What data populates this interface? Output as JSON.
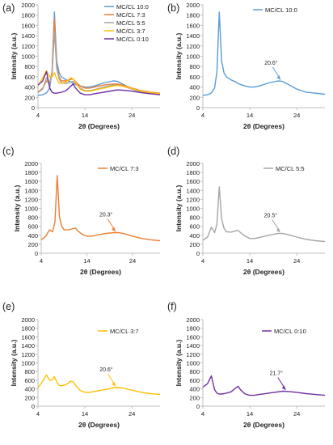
{
  "figure": {
    "colors": {
      "MC/CL 10:0": "#5b9bd5",
      "MC/CL 7:3": "#ed7d31",
      "MC/CL 5:5": "#a5a5a5",
      "MC/CL 3:7": "#ffc000",
      "MC/CL 0:10": "#7030a0",
      "axis": "#bfbfbf",
      "text": "#222222"
    }
  },
  "chart_data": [
    {
      "panel_label": "(a)",
      "type": "line",
      "xlabel": "2θ (Degrees)",
      "ylabel": "Intensity (a.u.)",
      "xlim": [
        4,
        30
      ],
      "ylim": [
        0,
        2000
      ],
      "xticks": [
        4,
        14,
        24
      ],
      "yticks": [
        0,
        200,
        400,
        600,
        800,
        1000,
        1200,
        1400,
        1600,
        1800,
        2000
      ],
      "grid": false,
      "legend": "top-right",
      "series": [
        {
          "name": "MC/CL 10:0",
          "x": [
            4,
            5,
            5.8,
            6.5,
            7,
            7.5,
            8,
            8.5,
            9,
            10,
            11,
            11.5,
            12,
            13,
            14,
            15,
            16,
            18,
            20,
            21,
            22,
            24,
            26,
            28,
            30
          ],
          "y": [
            240,
            250,
            285,
            380,
            700,
            1860,
            900,
            680,
            600,
            540,
            500,
            470,
            450,
            420,
            400,
            400,
            420,
            480,
            520,
            510,
            460,
            360,
            300,
            280,
            260
          ]
        },
        {
          "name": "MC/CL 7:3",
          "x": [
            4,
            5,
            5.8,
            6.5,
            7,
            7.5,
            8,
            8.5,
            9,
            10,
            11,
            11.5,
            12,
            13,
            14,
            15,
            16,
            18,
            20,
            21,
            22,
            24,
            26,
            28,
            30
          ],
          "y": [
            300,
            380,
            520,
            480,
            700,
            1730,
            800,
            600,
            520,
            520,
            550,
            560,
            500,
            420,
            380,
            380,
            400,
            440,
            460,
            460,
            440,
            380,
            330,
            300,
            280
          ]
        },
        {
          "name": "MC/CL 5:5",
          "x": [
            4,
            5,
            5.8,
            6.5,
            7,
            7.5,
            8,
            8.5,
            9,
            10,
            11,
            11.5,
            12,
            13,
            14,
            15,
            16,
            18,
            20,
            21,
            22,
            24,
            26,
            28,
            30
          ],
          "y": [
            290,
            360,
            580,
            460,
            650,
            1480,
            760,
            560,
            480,
            470,
            500,
            510,
            460,
            380,
            330,
            330,
            350,
            400,
            440,
            440,
            420,
            360,
            310,
            280,
            260
          ]
        },
        {
          "name": "MC/CL 3:7",
          "x": [
            4,
            5,
            5.8,
            6.5,
            7,
            7.5,
            8,
            8.5,
            9,
            10,
            11,
            11.5,
            12,
            13,
            14,
            15,
            16,
            18,
            20,
            21,
            22,
            24,
            26,
            28,
            30
          ],
          "y": [
            420,
            580,
            720,
            600,
            600,
            680,
            560,
            480,
            470,
            500,
            580,
            560,
            480,
            360,
            320,
            320,
            340,
            380,
            420,
            430,
            420,
            370,
            320,
            290,
            270
          ]
        },
        {
          "name": "MC/CL 0:10",
          "x": [
            4,
            5,
            5.8,
            6.5,
            7,
            7.5,
            8,
            8.5,
            9,
            10,
            11,
            11.5,
            12,
            13,
            14,
            15,
            16,
            18,
            20,
            21,
            22,
            24,
            26,
            28,
            30
          ],
          "y": [
            440,
            520,
            700,
            380,
            300,
            280,
            280,
            290,
            300,
            330,
            420,
            460,
            380,
            280,
            250,
            250,
            270,
            300,
            330,
            345,
            340,
            320,
            290,
            270,
            250
          ]
        }
      ]
    },
    {
      "panel_label": "(b)",
      "type": "line",
      "xlabel": "2θ (Degrees)",
      "ylabel": "Intensity (a.u.)",
      "xlim": [
        4,
        30
      ],
      "ylim": [
        0,
        2000
      ],
      "xticks": [
        4,
        14,
        24
      ],
      "yticks": [
        0,
        200,
        400,
        600,
        800,
        1000,
        1200,
        1400,
        1600,
        1800,
        2000
      ],
      "legend": "top-right",
      "annotation": {
        "text": "20.6°",
        "x": 20.6,
        "y": 520
      },
      "series": [
        {
          "name": "MC/CL 10:0",
          "x": [
            4,
            5,
            5.8,
            6.5,
            7,
            7.5,
            8,
            8.5,
            9,
            10,
            11,
            11.5,
            12,
            13,
            14,
            15,
            16,
            18,
            20,
            21,
            22,
            24,
            26,
            28,
            30
          ],
          "y": [
            240,
            250,
            285,
            380,
            700,
            1860,
            900,
            680,
            600,
            540,
            500,
            470,
            450,
            420,
            400,
            400,
            420,
            480,
            520,
            510,
            460,
            360,
            300,
            280,
            260
          ]
        }
      ]
    },
    {
      "panel_label": "(c)",
      "type": "line",
      "xlabel": "2θ (Degrees)",
      "ylabel": "Intensity (a.u.)",
      "xlim": [
        4,
        30
      ],
      "ylim": [
        0,
        2000
      ],
      "xticks": [
        4,
        14,
        24
      ],
      "yticks": [
        0,
        200,
        400,
        600,
        800,
        1000,
        1200,
        1400,
        1600,
        1800,
        2000
      ],
      "legend": "top-right",
      "annotation": {
        "text": "20.3°",
        "x": 20.3,
        "y": 460
      },
      "series": [
        {
          "name": "MC/CL 7:3",
          "x": [
            4,
            5,
            5.8,
            6.5,
            7,
            7.5,
            8,
            8.5,
            9,
            10,
            11,
            11.5,
            12,
            13,
            14,
            15,
            16,
            18,
            20,
            21,
            22,
            24,
            26,
            28,
            30
          ],
          "y": [
            300,
            380,
            520,
            480,
            700,
            1730,
            800,
            600,
            520,
            520,
            550,
            560,
            500,
            420,
            380,
            380,
            400,
            440,
            460,
            460,
            440,
            380,
            330,
            300,
            280
          ]
        }
      ]
    },
    {
      "panel_label": "(d)",
      "type": "line",
      "xlabel": "2θ (Degrees)",
      "ylabel": "Intensity (a.u.)",
      "xlim": [
        4,
        30
      ],
      "ylim": [
        0,
        2000
      ],
      "xticks": [
        4,
        14,
        24
      ],
      "yticks": [
        0,
        200,
        400,
        600,
        800,
        1000,
        1200,
        1400,
        1600,
        1800,
        2000
      ],
      "legend": "top-right",
      "annotation": {
        "text": "20.5°",
        "x": 20.5,
        "y": 440
      },
      "series": [
        {
          "name": "MC/CL 5:5",
          "x": [
            4,
            5,
            5.8,
            6.5,
            7,
            7.5,
            8,
            8.5,
            9,
            10,
            11,
            11.5,
            12,
            13,
            14,
            15,
            16,
            18,
            20,
            21,
            22,
            24,
            26,
            28,
            30
          ],
          "y": [
            290,
            360,
            580,
            460,
            650,
            1480,
            760,
            560,
            480,
            470,
            500,
            510,
            460,
            380,
            330,
            330,
            350,
            400,
            440,
            440,
            420,
            360,
            310,
            280,
            260
          ]
        }
      ]
    },
    {
      "panel_label": "(e)",
      "type": "line",
      "xlabel": "2θ (Degrees)",
      "ylabel": "Intensity (a.u.)",
      "xlim": [
        4,
        30
      ],
      "ylim": [
        0,
        2000
      ],
      "xticks": [
        4,
        14,
        24
      ],
      "yticks": [
        0,
        200,
        400,
        600,
        800,
        1000,
        1200,
        1400,
        1600,
        1800,
        2000
      ],
      "legend": "top-right",
      "annotation": {
        "text": "20.6°",
        "x": 20.6,
        "y": 430
      },
      "series": [
        {
          "name": "MC/CL 3:7",
          "x": [
            4,
            5,
            5.8,
            6.5,
            7,
            7.5,
            8,
            8.5,
            9,
            10,
            11,
            11.5,
            12,
            13,
            14,
            15,
            16,
            18,
            20,
            21,
            22,
            24,
            26,
            28,
            30
          ],
          "y": [
            420,
            580,
            720,
            600,
            600,
            680,
            560,
            480,
            470,
            500,
            580,
            560,
            480,
            360,
            320,
            320,
            340,
            380,
            420,
            430,
            420,
            370,
            320,
            290,
            270
          ]
        }
      ]
    },
    {
      "panel_label": "(f)",
      "type": "line",
      "xlabel": "2θ (Degrees)",
      "ylabel": "Intensity (a.u.)",
      "xlim": [
        4,
        30
      ],
      "ylim": [
        0,
        2000
      ],
      "xticks": [
        4,
        14,
        24
      ],
      "yticks": [
        0,
        200,
        400,
        600,
        800,
        1000,
        1200,
        1400,
        1600,
        1800,
        2000
      ],
      "legend": "top-right",
      "annotation": {
        "text": "21.7°",
        "x": 21.7,
        "y": 345
      },
      "series": [
        {
          "name": "MC/CL 0:10",
          "x": [
            4,
            5,
            5.8,
            6.5,
            7,
            7.5,
            8,
            8.5,
            9,
            10,
            11,
            11.5,
            12,
            13,
            14,
            15,
            16,
            18,
            20,
            21,
            22,
            24,
            26,
            28,
            30
          ],
          "y": [
            440,
            520,
            700,
            380,
            300,
            280,
            280,
            290,
            300,
            330,
            420,
            460,
            380,
            280,
            250,
            250,
            270,
            300,
            330,
            345,
            340,
            320,
            290,
            270,
            250
          ]
        }
      ]
    }
  ]
}
